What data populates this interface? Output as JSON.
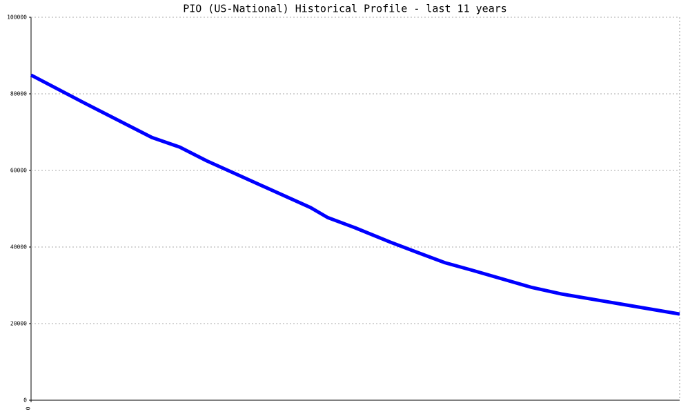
{
  "chart_data": {
    "type": "line",
    "title": "PIO (US-National) Historical Profile - last 11 years",
    "x": [
      0,
      0.88,
      2.05,
      2.52,
      2.98,
      4.74,
      5.03,
      5.5,
      6.09,
      6.55,
      7.02,
      7.49,
      8.48,
      9.01,
      11
    ],
    "series": [
      {
        "color": "#0000ff",
        "values": [
          84900,
          77800,
          68600,
          66100,
          62500,
          50300,
          47700,
          45000,
          41300,
          38600,
          35900,
          33900,
          29500,
          27700,
          22500
        ]
      }
    ],
    "xlim": [
      0,
      11
    ],
    "xticks": [
      0
    ],
    "ylim": [
      0,
      100000
    ],
    "yticks": [
      0,
      20000,
      40000,
      60000,
      80000,
      100000
    ],
    "grid": true
  }
}
